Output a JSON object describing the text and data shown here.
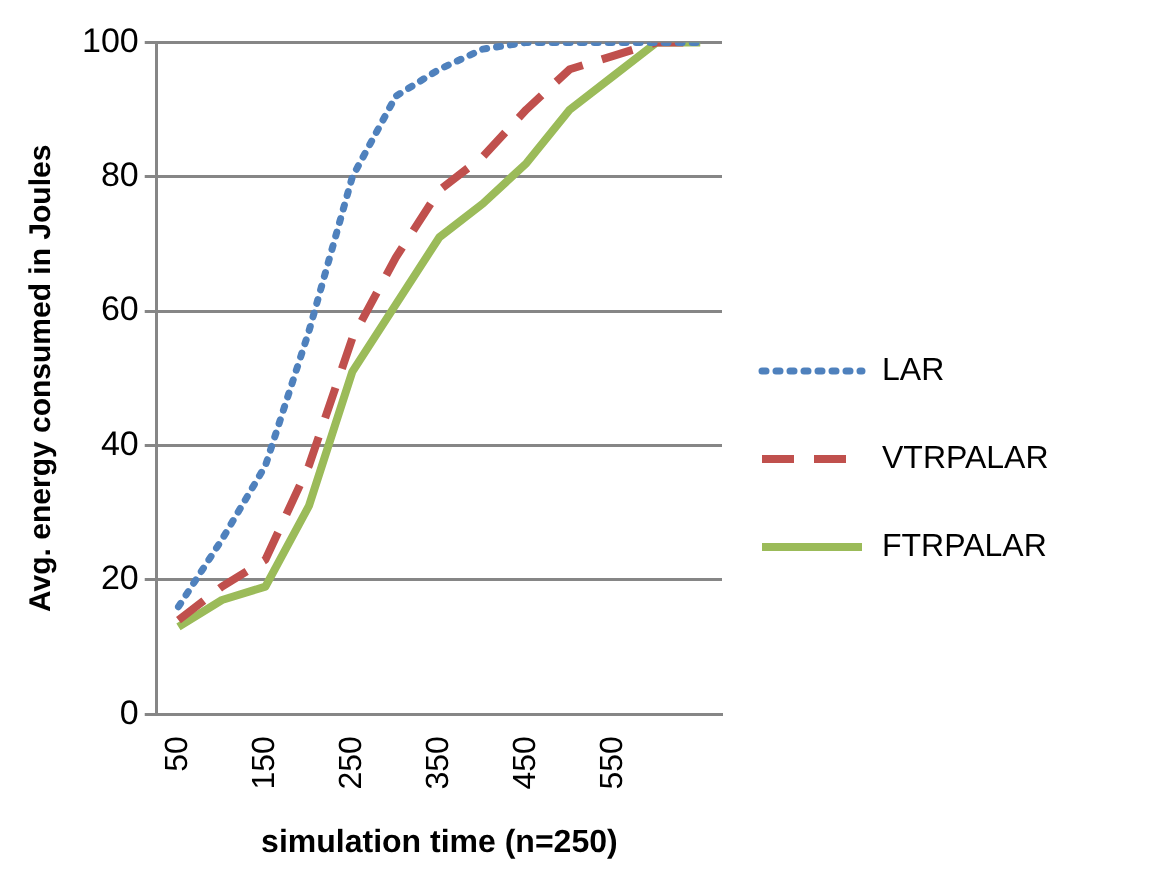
{
  "chart_data": {
    "type": "line",
    "xlabel": "simulation time (n=250)",
    "ylabel": "Avg. energy consumed in Joules",
    "categories": [
      "50",
      null,
      "150",
      null,
      "250",
      null,
      "350",
      null,
      "450",
      null,
      "550",
      null,
      null
    ],
    "series": [
      {
        "name": "LAR",
        "color": "#4f81bd",
        "line_style": "dotted",
        "values": [
          16,
          26,
          37,
          57,
          80,
          92,
          96,
          99,
          100,
          100,
          100,
          100,
          100
        ]
      },
      {
        "name": "VTRPALAR",
        "color": "#c0504d",
        "line_style": "dashed",
        "values": [
          14,
          19,
          23,
          37,
          56,
          68,
          78,
          83,
          90,
          96,
          98,
          100,
          100
        ]
      },
      {
        "name": "FTRPALAR",
        "color": "#9bbb59",
        "line_style": "solid",
        "values": [
          13,
          17,
          19,
          31,
          51,
          61,
          71,
          76,
          82,
          90,
          95,
          100,
          100
        ]
      }
    ],
    "ylim": [
      0,
      100
    ],
    "yticks": [
      0,
      20,
      40,
      60,
      80,
      100
    ],
    "grid": "y",
    "legend": "right",
    "marker": "none"
  }
}
